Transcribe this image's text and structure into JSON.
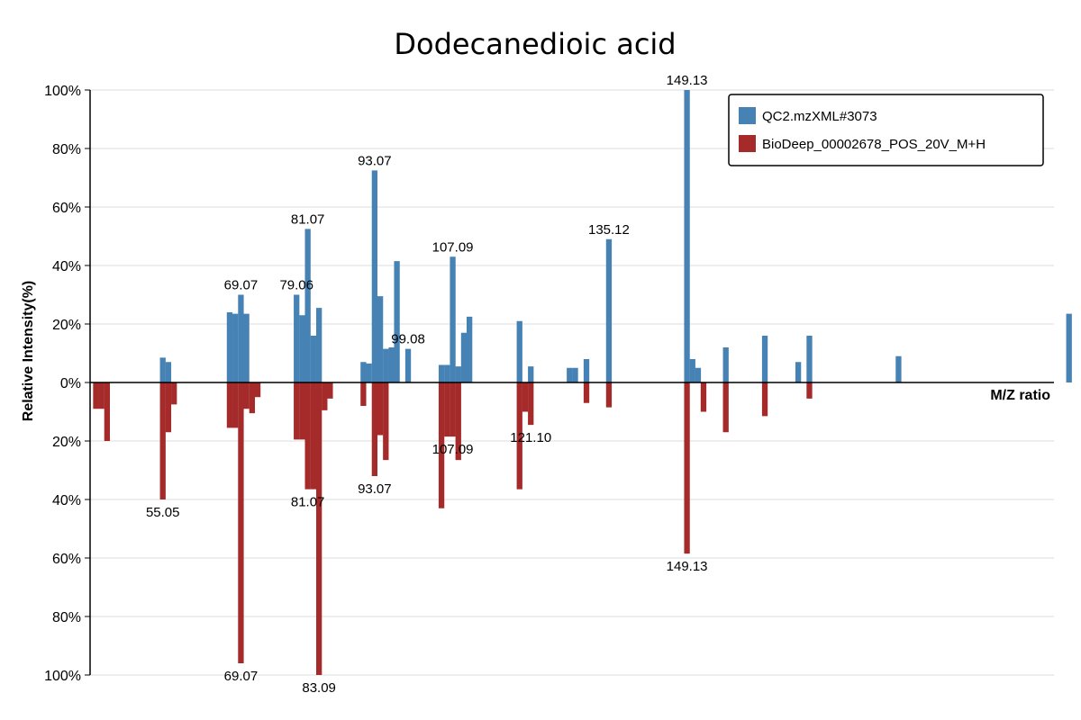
{
  "chart_data": {
    "type": "bar",
    "title": "Dodecanedioic acid",
    "xlabel": "M/Z ratio",
    "ylabel": "Relative Intensity(%)",
    "xlim": [
      42,
      215
    ],
    "ylim_top": [
      0,
      100
    ],
    "ylim_bottom": [
      0,
      100
    ],
    "yticks_top": [
      "100%",
      "80%",
      "60%",
      "40%",
      "20%",
      "0%"
    ],
    "yticks_bottom": [
      "20%",
      "40%",
      "60%",
      "80%",
      "100%"
    ],
    "grid": true,
    "legend_position": "top-right",
    "series": [
      {
        "name": "QC2.mzXML#3073",
        "color": "#4682b4",
        "direction": "up",
        "peaks": [
          {
            "mz": 55.05,
            "y": 8.5
          },
          {
            "mz": 56.05,
            "y": 7
          },
          {
            "mz": 67.05,
            "y": 24
          },
          {
            "mz": 68.06,
            "y": 23.5
          },
          {
            "mz": 69.07,
            "y": 30,
            "label": "69.07"
          },
          {
            "mz": 70.07,
            "y": 23.5
          },
          {
            "mz": 79.06,
            "y": 30,
            "label": "79.06"
          },
          {
            "mz": 80.06,
            "y": 23
          },
          {
            "mz": 81.07,
            "y": 52.5,
            "label": "81.07"
          },
          {
            "mz": 82.07,
            "y": 16
          },
          {
            "mz": 83.09,
            "y": 25.5
          },
          {
            "mz": 91.05,
            "y": 7
          },
          {
            "mz": 92.06,
            "y": 6.5
          },
          {
            "mz": 93.07,
            "y": 72.5,
            "label": "93.07"
          },
          {
            "mz": 94.08,
            "y": 29.5
          },
          {
            "mz": 95.08,
            "y": 11.5
          },
          {
            "mz": 96.09,
            "y": 12
          },
          {
            "mz": 97.07,
            "y": 41.5
          },
          {
            "mz": 99.08,
            "y": 11.5,
            "label": "99.08"
          },
          {
            "mz": 105.07,
            "y": 6
          },
          {
            "mz": 106.07,
            "y": 6
          },
          {
            "mz": 107.09,
            "y": 43,
            "label": "107.09"
          },
          {
            "mz": 108.09,
            "y": 5.5
          },
          {
            "mz": 109.09,
            "y": 17
          },
          {
            "mz": 110.09,
            "y": 22.5
          },
          {
            "mz": 119.08,
            "y": 21
          },
          {
            "mz": 121.1,
            "y": 5.5
          },
          {
            "mz": 128.06,
            "y": 5
          },
          {
            "mz": 129.07,
            "y": 5
          },
          {
            "mz": 131.09,
            "y": 8
          },
          {
            "mz": 135.12,
            "y": 49,
            "label": "135.12"
          },
          {
            "mz": 149.13,
            "y": 100,
            "label": "149.13"
          },
          {
            "mz": 150.13,
            "y": 8
          },
          {
            "mz": 151.13,
            "y": 5
          },
          {
            "mz": 156.1,
            "y": 12
          },
          {
            "mz": 163.11,
            "y": 16
          },
          {
            "mz": 169.1,
            "y": 7
          },
          {
            "mz": 171.1,
            "y": 16
          },
          {
            "mz": 187.1,
            "y": 9
          },
          {
            "mz": 217.7,
            "y": 23.5
          }
        ]
      },
      {
        "name": "BioDeep_00002678_POS_20V_M+H",
        "color": "#a52a2a",
        "direction": "down",
        "peaks": [
          {
            "mz": 43.05,
            "y": 9
          },
          {
            "mz": 44.05,
            "y": 9
          },
          {
            "mz": 45.05,
            "y": 20
          },
          {
            "mz": 55.05,
            "y": 40,
            "label": "55.05"
          },
          {
            "mz": 56.05,
            "y": 17
          },
          {
            "mz": 57.07,
            "y": 7.5
          },
          {
            "mz": 67.05,
            "y": 15.5
          },
          {
            "mz": 68.06,
            "y": 15.5
          },
          {
            "mz": 69.07,
            "y": 96,
            "label": "69.07"
          },
          {
            "mz": 70.07,
            "y": 9
          },
          {
            "mz": 71.08,
            "y": 10.5
          },
          {
            "mz": 72.08,
            "y": 5
          },
          {
            "mz": 79.06,
            "y": 19.5
          },
          {
            "mz": 80.06,
            "y": 19.5
          },
          {
            "mz": 81.07,
            "y": 36.5,
            "label": "81.07"
          },
          {
            "mz": 82.07,
            "y": 36.5
          },
          {
            "mz": 83.09,
            "y": 100,
            "label": "83.09"
          },
          {
            "mz": 84.09,
            "y": 9.5
          },
          {
            "mz": 85.07,
            "y": 5.5
          },
          {
            "mz": 91.05,
            "y": 8
          },
          {
            "mz": 93.07,
            "y": 32,
            "label": "93.07"
          },
          {
            "mz": 94.08,
            "y": 18
          },
          {
            "mz": 95.08,
            "y": 26.5
          },
          {
            "mz": 105.07,
            "y": 43
          },
          {
            "mz": 106.07,
            "y": 18.5
          },
          {
            "mz": 107.09,
            "y": 18.5,
            "label": "107.09"
          },
          {
            "mz": 108.09,
            "y": 26.5
          },
          {
            "mz": 119.08,
            "y": 36.5
          },
          {
            "mz": 120.08,
            "y": 10
          },
          {
            "mz": 121.1,
            "y": 14.5,
            "label": "121.10"
          },
          {
            "mz": 131.09,
            "y": 7
          },
          {
            "mz": 135.12,
            "y": 8.5
          },
          {
            "mz": 149.13,
            "y": 58.5,
            "label": "149.13"
          },
          {
            "mz": 152.1,
            "y": 10
          },
          {
            "mz": 156.1,
            "y": 17
          },
          {
            "mz": 163.11,
            "y": 11.5
          },
          {
            "mz": 171.1,
            "y": 5.5
          }
        ]
      }
    ]
  }
}
